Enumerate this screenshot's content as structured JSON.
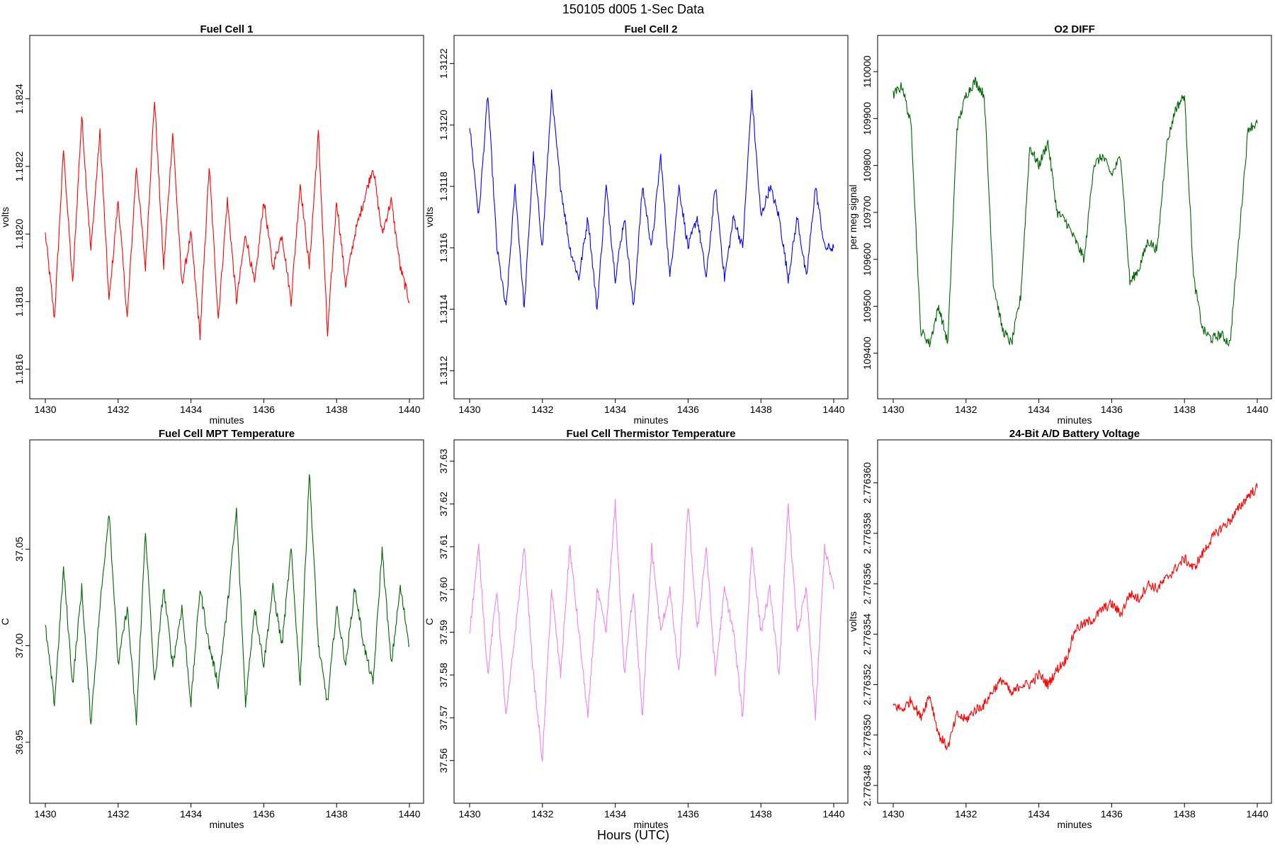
{
  "figure": {
    "title": "150105   d005   1-Sec Data",
    "xlabel": "Hours (UTC)"
  },
  "chart_data": [
    {
      "type": "line",
      "title": "Fuel Cell 1",
      "xlabel": "minutes",
      "ylabel": "volts",
      "color": "#ff0000",
      "xlim": [
        1430,
        1440
      ],
      "ylim": [
        1.18155,
        1.18255
      ],
      "xticks": [
        1430,
        1432,
        1434,
        1436,
        1438,
        1440
      ],
      "yticks": [
        1.1816,
        1.1818,
        1.182,
        1.1822,
        1.1824
      ],
      "ytick_labels": [
        "1.1816",
        "1.1818",
        "1.1820",
        "1.1822",
        "1.1824"
      ],
      "series": [
        {
          "x": [
            1430.0,
            1430.25,
            1430.5,
            1430.75,
            1431.0,
            1431.25,
            1431.5,
            1431.75,
            1432.0,
            1432.25,
            1432.5,
            1432.75,
            1433.0,
            1433.25,
            1433.5,
            1433.75,
            1434.0,
            1434.25,
            1434.5,
            1434.75,
            1435.0,
            1435.25,
            1435.5,
            1435.75,
            1436.0,
            1436.25,
            1436.5,
            1436.75,
            1437.0,
            1437.25,
            1437.5,
            1437.75,
            1438.0,
            1438.25,
            1438.5,
            1438.75,
            1439.0,
            1439.25,
            1439.5,
            1439.75,
            1440.0
          ],
          "y": [
            1.182,
            1.18175,
            1.18225,
            1.18185,
            1.18235,
            1.18195,
            1.1823,
            1.1818,
            1.1821,
            1.18175,
            1.1822,
            1.1819,
            1.1824,
            1.1819,
            1.1823,
            1.18185,
            1.182,
            1.1817,
            1.1822,
            1.18175,
            1.1821,
            1.1818,
            1.182,
            1.18185,
            1.1821,
            1.1819,
            1.182,
            1.1818,
            1.18215,
            1.1819,
            1.1823,
            1.1817,
            1.1821,
            1.18185,
            1.182,
            1.1821,
            1.1822,
            1.182,
            1.1821,
            1.1819,
            1.1818
          ]
        }
      ]
    },
    {
      "type": "line",
      "title": "Fuel Cell 2",
      "xlabel": "minutes",
      "ylabel": "volts",
      "color": "#0000ff",
      "xlim": [
        1430,
        1440
      ],
      "ylim": [
        1.31115,
        1.31225
      ],
      "xticks": [
        1430,
        1432,
        1434,
        1436,
        1438,
        1440
      ],
      "yticks": [
        1.3112,
        1.3114,
        1.3116,
        1.3118,
        1.312,
        1.3122
      ],
      "ytick_labels": [
        "1.3112",
        "1.3114",
        "1.3116",
        "1.3118",
        "1.3120",
        "1.3122"
      ],
      "series": [
        {
          "x": [
            1430.0,
            1430.25,
            1430.5,
            1430.75,
            1431.0,
            1431.25,
            1431.5,
            1431.75,
            1432.0,
            1432.25,
            1432.5,
            1432.75,
            1433.0,
            1433.25,
            1433.5,
            1433.75,
            1434.0,
            1434.25,
            1434.5,
            1434.75,
            1435.0,
            1435.25,
            1435.5,
            1435.75,
            1436.0,
            1436.25,
            1436.5,
            1436.75,
            1437.0,
            1437.25,
            1437.5,
            1437.75,
            1438.0,
            1438.25,
            1438.5,
            1438.75,
            1439.0,
            1439.25,
            1439.5,
            1439.75,
            1440.0
          ],
          "y": [
            1.312,
            1.3117,
            1.3121,
            1.3116,
            1.3114,
            1.3118,
            1.3114,
            1.3119,
            1.3116,
            1.3121,
            1.3118,
            1.3116,
            1.3115,
            1.3117,
            1.3114,
            1.3118,
            1.3115,
            1.3117,
            1.3114,
            1.3118,
            1.3116,
            1.3119,
            1.3115,
            1.3118,
            1.3116,
            1.3117,
            1.3115,
            1.3118,
            1.3115,
            1.3117,
            1.3116,
            1.3121,
            1.3117,
            1.3118,
            1.3117,
            1.3115,
            1.3117,
            1.3115,
            1.3118,
            1.3116,
            1.3116
          ]
        }
      ]
    },
    {
      "type": "line",
      "title": "O2 DIFF",
      "xlabel": "minutes",
      "ylabel": "per meg signal",
      "color": "#006400",
      "xlim": [
        1430,
        1440
      ],
      "ylim": [
        109330,
        110050
      ],
      "xticks": [
        1430,
        1432,
        1434,
        1436,
        1438,
        1440
      ],
      "yticks": [
        109400,
        109500,
        109600,
        109700,
        109800,
        109900,
        110000
      ],
      "ytick_labels": [
        "109400",
        "109500",
        "109600",
        "109700",
        "109800",
        "109900",
        "110000"
      ],
      "series": [
        {
          "x": [
            1430.0,
            1430.25,
            1430.5,
            1430.75,
            1431.0,
            1431.25,
            1431.5,
            1431.75,
            1432.0,
            1432.25,
            1432.5,
            1432.75,
            1433.0,
            1433.25,
            1433.5,
            1433.75,
            1434.0,
            1434.25,
            1434.5,
            1434.75,
            1435.0,
            1435.25,
            1435.5,
            1435.75,
            1436.0,
            1436.25,
            1436.5,
            1436.75,
            1437.0,
            1437.25,
            1437.5,
            1437.75,
            1438.0,
            1438.25,
            1438.5,
            1438.75,
            1439.0,
            1439.25,
            1439.5,
            1439.75,
            1440.0
          ],
          "y": [
            109950,
            109970,
            109880,
            109450,
            109420,
            109500,
            109420,
            109880,
            109950,
            109980,
            109950,
            109550,
            109450,
            109420,
            109520,
            109840,
            109800,
            109850,
            109700,
            109680,
            109640,
            109600,
            109800,
            109820,
            109780,
            109820,
            109550,
            109580,
            109640,
            109620,
            109840,
            109920,
            109950,
            109560,
            109450,
            109430,
            109440,
            109420,
            109650,
            109880,
            109890
          ]
        }
      ]
    },
    {
      "type": "line",
      "title": "Fuel Cell MPT Temperature",
      "xlabel": "minutes",
      "ylabel": "C",
      "color": "#006400",
      "xlim": [
        1430,
        1440
      ],
      "ylim": [
        36.925,
        37.1
      ],
      "xticks": [
        1430,
        1432,
        1434,
        1436,
        1438,
        1440
      ],
      "yticks": [
        36.95,
        37.0,
        37.05
      ],
      "ytick_labels": [
        "36.95",
        "37.00",
        "37.05"
      ],
      "series": [
        {
          "x": [
            1430.0,
            1430.25,
            1430.5,
            1430.75,
            1431.0,
            1431.25,
            1431.5,
            1431.75,
            1432.0,
            1432.25,
            1432.5,
            1432.75,
            1433.0,
            1433.25,
            1433.5,
            1433.75,
            1434.0,
            1434.25,
            1434.5,
            1434.75,
            1435.0,
            1435.25,
            1435.5,
            1435.75,
            1436.0,
            1436.25,
            1436.5,
            1436.75,
            1437.0,
            1437.25,
            1437.5,
            1437.75,
            1438.0,
            1438.25,
            1438.5,
            1438.75,
            1439.0,
            1439.25,
            1439.5,
            1439.75,
            1440.0
          ],
          "y": [
            37.01,
            36.97,
            37.04,
            36.98,
            37.03,
            36.96,
            37.02,
            37.07,
            36.99,
            37.02,
            36.96,
            37.06,
            36.98,
            37.03,
            36.99,
            37.02,
            36.97,
            37.03,
            37.0,
            36.98,
            37.02,
            37.07,
            36.97,
            37.02,
            36.99,
            37.03,
            37.0,
            37.05,
            36.98,
            37.09,
            37.0,
            36.97,
            37.02,
            36.99,
            37.03,
            37.0,
            36.98,
            37.05,
            36.99,
            37.03,
            37.0
          ]
        }
      ]
    },
    {
      "type": "line",
      "title": "Fuel Cell Thermistor Temperature",
      "xlabel": "minutes",
      "ylabel": "C",
      "color": "#ee82ee",
      "xlim": [
        1430,
        1440
      ],
      "ylim": [
        37.553,
        37.632
      ],
      "xticks": [
        1430,
        1432,
        1434,
        1436,
        1438,
        1440
      ],
      "yticks": [
        37.56,
        37.57,
        37.58,
        37.59,
        37.6,
        37.61,
        37.62,
        37.63
      ],
      "ytick_labels": [
        "37.56",
        "37.57",
        "37.58",
        "37.59",
        "37.60",
        "37.61",
        "37.62",
        "37.63"
      ],
      "series": [
        {
          "x": [
            1430.0,
            1430.25,
            1430.5,
            1430.75,
            1431.0,
            1431.25,
            1431.5,
            1431.75,
            1432.0,
            1432.25,
            1432.5,
            1432.75,
            1433.0,
            1433.25,
            1433.5,
            1433.75,
            1434.0,
            1434.25,
            1434.5,
            1434.75,
            1435.0,
            1435.25,
            1435.5,
            1435.75,
            1436.0,
            1436.25,
            1436.5,
            1436.75,
            1437.0,
            1437.25,
            1437.5,
            1437.75,
            1438.0,
            1438.25,
            1438.5,
            1438.75,
            1439.0,
            1439.25,
            1439.5,
            1439.75,
            1440.0
          ],
          "y": [
            37.59,
            37.61,
            37.58,
            37.6,
            37.57,
            37.59,
            37.61,
            37.58,
            37.56,
            37.6,
            37.58,
            37.61,
            37.59,
            37.57,
            37.6,
            37.59,
            37.62,
            37.58,
            37.6,
            37.57,
            37.61,
            37.59,
            37.6,
            37.58,
            37.62,
            37.59,
            37.61,
            37.58,
            37.6,
            37.59,
            37.57,
            37.61,
            37.59,
            37.6,
            37.58,
            37.62,
            37.59,
            37.6,
            37.57,
            37.61,
            37.6
          ]
        }
      ]
    },
    {
      "type": "line",
      "title": "24-Bit A/D Battery Voltage",
      "xlabel": "minutes",
      "ylabel": "volts",
      "color": "#ff0000",
      "xlim": [
        1430,
        1440
      ],
      "ylim": [
        2.7763478,
        2.7763612
      ],
      "xticks": [
        1430,
        1432,
        1434,
        1436,
        1438,
        1440
      ],
      "yticks": [
        2.776348,
        2.77635,
        2.776352,
        2.776354,
        2.776356,
        2.776358,
        2.77636
      ],
      "ytick_labels": [
        "2.776348",
        "2.776350",
        "2.776352",
        "2.776354",
        "2.776356",
        "2.776358",
        "2.776360"
      ],
      "series": [
        {
          "x": [
            1430.0,
            1430.25,
            1430.5,
            1430.75,
            1431.0,
            1431.25,
            1431.5,
            1431.75,
            1432.0,
            1432.25,
            1432.5,
            1432.75,
            1433.0,
            1433.25,
            1433.5,
            1433.75,
            1434.0,
            1434.25,
            1434.5,
            1434.75,
            1435.0,
            1435.25,
            1435.5,
            1435.75,
            1436.0,
            1436.25,
            1436.5,
            1436.75,
            1437.0,
            1437.25,
            1437.5,
            1437.75,
            1438.0,
            1438.25,
            1438.5,
            1438.75,
            1439.0,
            1439.25,
            1439.5,
            1439.75,
            1440.0
          ],
          "y": [
            2.7763512,
            2.776351,
            2.7763514,
            2.7763507,
            2.7763516,
            2.77635,
            2.7763495,
            2.7763508,
            2.7763506,
            2.776351,
            2.7763512,
            2.7763518,
            2.7763522,
            2.7763516,
            2.776352,
            2.776352,
            2.7763524,
            2.776352,
            2.7763526,
            2.776353,
            2.7763542,
            2.7763544,
            2.7763546,
            2.776355,
            2.7763552,
            2.7763548,
            2.7763556,
            2.7763554,
            2.776356,
            2.7763558,
            2.7763562,
            2.7763566,
            2.776357,
            2.7763566,
            2.7763572,
            2.7763578,
            2.7763582,
            2.7763585,
            2.776359,
            2.7763595,
            2.7763598
          ]
        }
      ]
    }
  ]
}
